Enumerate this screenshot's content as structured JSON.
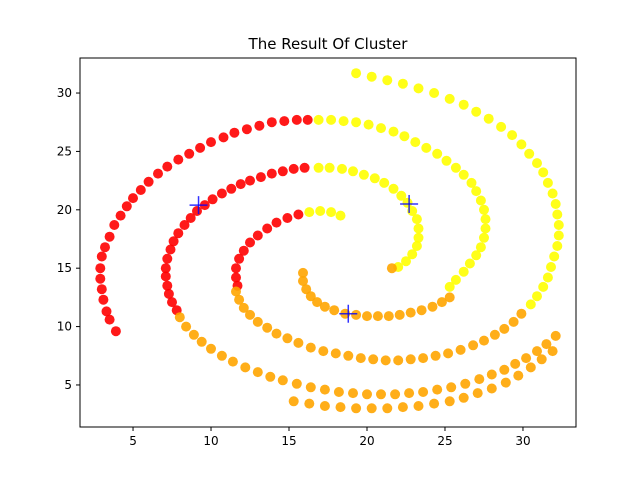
{
  "chart_data": {
    "type": "scatter",
    "title": "The Result Of Cluster",
    "xlabel": "",
    "ylabel": "",
    "xlim": [
      1.6,
      33.4
    ],
    "ylim": [
      1.4,
      33.0
    ],
    "xticks": [
      5,
      10,
      15,
      20,
      25,
      30
    ],
    "yticks": [
      5,
      10,
      15,
      20,
      25,
      30
    ],
    "grid": false,
    "legend": "none",
    "series": [
      {
        "color": "#ff0000",
        "points": [
          [
            3.9,
            9.6
          ],
          [
            3.5,
            10.6
          ],
          [
            3.3,
            11.3
          ],
          [
            3.1,
            12.3
          ],
          [
            3.0,
            13.2
          ],
          [
            2.9,
            14.1
          ],
          [
            2.9,
            15.0
          ],
          [
            3.0,
            16.0
          ],
          [
            3.2,
            16.8
          ],
          [
            3.5,
            17.7
          ],
          [
            3.8,
            18.7
          ],
          [
            4.2,
            19.5
          ],
          [
            4.6,
            20.3
          ],
          [
            5.0,
            21.0
          ],
          [
            5.5,
            21.7
          ],
          [
            6.0,
            22.4
          ],
          [
            6.6,
            23.1
          ],
          [
            7.2,
            23.7
          ],
          [
            7.9,
            24.3
          ],
          [
            8.6,
            24.8
          ],
          [
            9.3,
            25.3
          ],
          [
            10.0,
            25.8
          ],
          [
            10.8,
            26.2
          ],
          [
            11.5,
            26.6
          ],
          [
            12.3,
            26.9
          ],
          [
            13.1,
            27.2
          ],
          [
            13.9,
            27.5
          ],
          [
            14.7,
            27.6
          ],
          [
            15.5,
            27.7
          ],
          [
            16.2,
            27.7
          ],
          [
            7.8,
            11.4
          ],
          [
            7.5,
            12.1
          ],
          [
            7.3,
            12.8
          ],
          [
            7.2,
            13.5
          ],
          [
            7.1,
            14.3
          ],
          [
            7.1,
            15.0
          ],
          [
            7.2,
            15.8
          ],
          [
            7.4,
            16.6
          ],
          [
            7.6,
            17.3
          ],
          [
            7.9,
            18.0
          ],
          [
            8.3,
            18.7
          ],
          [
            8.7,
            19.3
          ],
          [
            9.1,
            19.9
          ],
          [
            9.6,
            20.4
          ],
          [
            10.1,
            20.9
          ],
          [
            10.7,
            21.4
          ],
          [
            11.3,
            21.8
          ],
          [
            11.9,
            22.2
          ],
          [
            12.5,
            22.5
          ],
          [
            13.2,
            22.8
          ],
          [
            13.9,
            23.1
          ],
          [
            14.6,
            23.3
          ],
          [
            15.3,
            23.5
          ],
          [
            16.0,
            23.6
          ],
          [
            11.7,
            13.5
          ],
          [
            11.6,
            14.2
          ],
          [
            11.6,
            15.0
          ],
          [
            11.8,
            15.8
          ],
          [
            12.1,
            16.5
          ],
          [
            12.5,
            17.2
          ],
          [
            13.0,
            17.8
          ],
          [
            13.6,
            18.4
          ],
          [
            14.2,
            18.9
          ],
          [
            14.9,
            19.3
          ],
          [
            15.6,
            19.6
          ]
        ]
      },
      {
        "color": "#ffff00",
        "points": [
          [
            16.3,
            19.8
          ],
          [
            17.0,
            19.9
          ],
          [
            17.7,
            19.8
          ],
          [
            18.3,
            19.5
          ],
          [
            16.9,
            23.6
          ],
          [
            17.6,
            23.6
          ],
          [
            18.4,
            23.5
          ],
          [
            19.1,
            23.3
          ],
          [
            19.8,
            23.0
          ],
          [
            20.5,
            22.7
          ],
          [
            21.1,
            22.3
          ],
          [
            21.7,
            21.8
          ],
          [
            22.2,
            21.2
          ],
          [
            22.6,
            20.6
          ],
          [
            22.9,
            19.9
          ],
          [
            23.2,
            19.2
          ],
          [
            23.3,
            18.4
          ],
          [
            23.3,
            17.6
          ],
          [
            23.2,
            16.9
          ],
          [
            22.9,
            16.2
          ],
          [
            22.5,
            15.6
          ],
          [
            22.0,
            15.1
          ],
          [
            16.9,
            27.7
          ],
          [
            17.7,
            27.7
          ],
          [
            18.5,
            27.6
          ],
          [
            19.3,
            27.5
          ],
          [
            20.1,
            27.3
          ],
          [
            20.9,
            27.0
          ],
          [
            21.7,
            26.7
          ],
          [
            22.4,
            26.3
          ],
          [
            23.1,
            25.8
          ],
          [
            23.8,
            25.3
          ],
          [
            24.5,
            24.8
          ],
          [
            25.1,
            24.2
          ],
          [
            25.7,
            23.6
          ],
          [
            26.2,
            23.0
          ],
          [
            26.7,
            22.3
          ],
          [
            27.0,
            21.6
          ],
          [
            27.3,
            20.8
          ],
          [
            27.5,
            20.0
          ],
          [
            27.6,
            19.2
          ],
          [
            27.6,
            18.4
          ],
          [
            27.5,
            17.6
          ],
          [
            27.3,
            16.8
          ],
          [
            27.0,
            16.1
          ],
          [
            26.6,
            15.4
          ],
          [
            26.2,
            14.7
          ],
          [
            25.7,
            14.0
          ],
          [
            25.3,
            13.4
          ],
          [
            19.3,
            31.7
          ],
          [
            20.3,
            31.4
          ],
          [
            21.3,
            31.1
          ],
          [
            22.3,
            30.8
          ],
          [
            23.3,
            30.4
          ],
          [
            24.3,
            30.0
          ],
          [
            25.3,
            29.5
          ],
          [
            26.2,
            29.0
          ],
          [
            27.0,
            28.4
          ],
          [
            27.8,
            27.8
          ],
          [
            28.6,
            27.1
          ],
          [
            29.3,
            26.4
          ],
          [
            29.9,
            25.6
          ],
          [
            30.4,
            24.8
          ],
          [
            30.9,
            24.0
          ],
          [
            31.3,
            23.2
          ],
          [
            31.6,
            22.3
          ],
          [
            31.9,
            21.4
          ],
          [
            32.1,
            20.5
          ],
          [
            32.2,
            19.6
          ],
          [
            32.3,
            18.7
          ],
          [
            32.3,
            17.8
          ],
          [
            32.2,
            16.9
          ],
          [
            32.0,
            16.0
          ],
          [
            31.8,
            15.1
          ],
          [
            31.6,
            14.2
          ],
          [
            31.3,
            13.4
          ],
          [
            30.9,
            12.6
          ],
          [
            30.5,
            11.9
          ]
        ]
      },
      {
        "color": "#ffa500",
        "points": [
          [
            21.6,
            15.0
          ],
          [
            15.9,
            14.6
          ],
          [
            15.9,
            13.9
          ],
          [
            16.1,
            13.2
          ],
          [
            16.4,
            12.6
          ],
          [
            16.8,
            12.1
          ],
          [
            17.3,
            11.7
          ],
          [
            17.9,
            11.4
          ],
          [
            18.6,
            11.1
          ],
          [
            19.3,
            11.0
          ],
          [
            20.0,
            10.9
          ],
          [
            20.7,
            10.9
          ],
          [
            21.4,
            10.9
          ],
          [
            22.1,
            11.0
          ],
          [
            22.8,
            11.2
          ],
          [
            23.5,
            11.4
          ],
          [
            24.2,
            11.7
          ],
          [
            24.8,
            12.1
          ],
          [
            25.3,
            12.5
          ],
          [
            11.6,
            13.0
          ],
          [
            11.8,
            12.3
          ],
          [
            12.1,
            11.6
          ],
          [
            12.5,
            11.0
          ],
          [
            13.0,
            10.4
          ],
          [
            13.6,
            9.9
          ],
          [
            14.2,
            9.4
          ],
          [
            14.9,
            9.0
          ],
          [
            15.6,
            8.6
          ],
          [
            16.4,
            8.2
          ],
          [
            17.2,
            7.9
          ],
          [
            18.0,
            7.7
          ],
          [
            18.8,
            7.5
          ],
          [
            19.6,
            7.3
          ],
          [
            20.4,
            7.2
          ],
          [
            21.2,
            7.1
          ],
          [
            22.0,
            7.1
          ],
          [
            22.8,
            7.2
          ],
          [
            23.6,
            7.3
          ],
          [
            24.4,
            7.5
          ],
          [
            25.2,
            7.7
          ],
          [
            26.0,
            8.0
          ],
          [
            26.8,
            8.4
          ],
          [
            27.5,
            8.8
          ],
          [
            28.2,
            9.3
          ],
          [
            28.8,
            9.8
          ],
          [
            29.4,
            10.4
          ],
          [
            29.9,
            11.1
          ],
          [
            8.0,
            10.8
          ],
          [
            8.4,
            10.0
          ],
          [
            8.9,
            9.3
          ],
          [
            9.4,
            8.7
          ],
          [
            10.0,
            8.1
          ],
          [
            10.7,
            7.5
          ],
          [
            11.4,
            7.0
          ],
          [
            12.2,
            6.5
          ],
          [
            13.0,
            6.1
          ],
          [
            13.8,
            5.7
          ],
          [
            14.6,
            5.4
          ],
          [
            15.5,
            5.1
          ],
          [
            16.4,
            4.8
          ],
          [
            17.3,
            4.6
          ],
          [
            18.2,
            4.4
          ],
          [
            19.1,
            4.3
          ],
          [
            20.0,
            4.2
          ],
          [
            20.9,
            4.2
          ],
          [
            21.8,
            4.2
          ],
          [
            22.7,
            4.3
          ],
          [
            23.6,
            4.4
          ],
          [
            24.5,
            4.6
          ],
          [
            25.4,
            4.8
          ],
          [
            26.3,
            5.1
          ],
          [
            27.2,
            5.5
          ],
          [
            28.0,
            5.9
          ],
          [
            28.8,
            6.3
          ],
          [
            29.5,
            6.8
          ],
          [
            30.2,
            7.3
          ],
          [
            30.9,
            7.9
          ],
          [
            31.5,
            8.5
          ],
          [
            32.1,
            9.2
          ],
          [
            15.3,
            3.6
          ],
          [
            16.3,
            3.4
          ],
          [
            17.3,
            3.2
          ],
          [
            18.3,
            3.1
          ],
          [
            19.3,
            3.0
          ],
          [
            20.3,
            3.0
          ],
          [
            21.3,
            3.0
          ],
          [
            22.3,
            3.1
          ],
          [
            23.3,
            3.2
          ],
          [
            24.3,
            3.4
          ],
          [
            25.3,
            3.6
          ],
          [
            26.2,
            3.9
          ],
          [
            27.1,
            4.3
          ],
          [
            28.0,
            4.7
          ],
          [
            28.9,
            5.2
          ],
          [
            29.7,
            5.8
          ],
          [
            30.5,
            6.5
          ],
          [
            31.2,
            7.2
          ],
          [
            31.9,
            7.9
          ]
        ]
      }
    ],
    "centroids": {
      "color": "#0000ff",
      "points": [
        [
          9.2,
          20.4
        ],
        [
          22.7,
          20.5
        ],
        [
          18.8,
          11.1
        ]
      ]
    }
  }
}
